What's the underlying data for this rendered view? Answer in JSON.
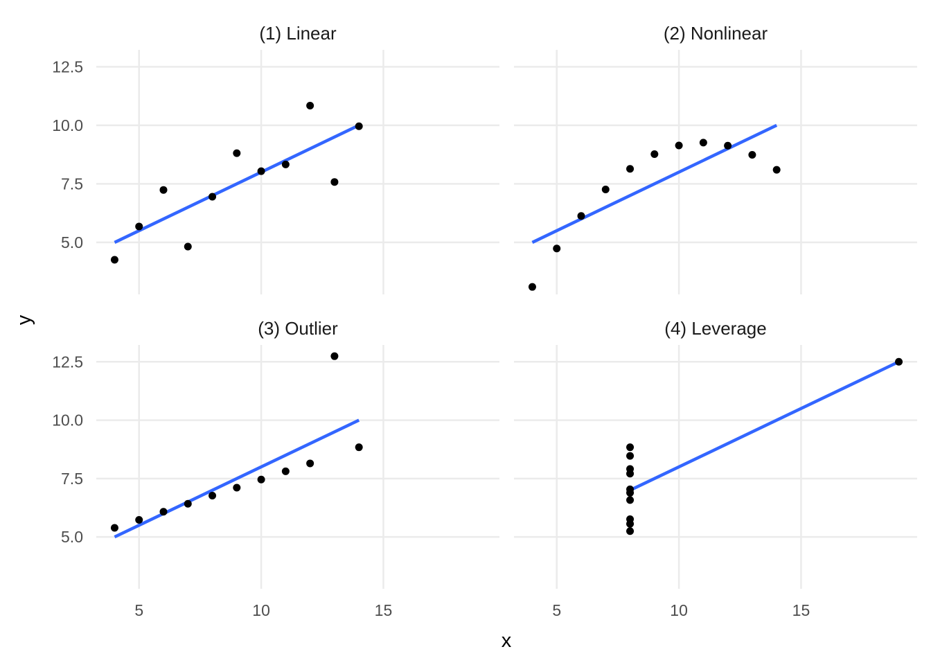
{
  "chart_data": {
    "type": "scatter",
    "xlabel": "x",
    "ylabel": "y",
    "xlim": [
      3.25,
      19.75
    ],
    "ylim": [
      2.78,
      13.22
    ],
    "x_ticks": [
      5,
      10,
      15
    ],
    "y_ticks": [
      5.0,
      7.5,
      10.0,
      12.5
    ],
    "x_tick_labels": [
      "5",
      "10",
      "15"
    ],
    "y_tick_labels": [
      "5.0",
      "7.5",
      "10.0",
      "12.5"
    ],
    "grid": true,
    "point_color": "#000000",
    "line_color": "#3366ff",
    "panels": [
      {
        "title": "(1) Linear",
        "points": {
          "x": [
            10,
            8,
            13,
            9,
            11,
            14,
            6,
            4,
            12,
            7,
            5
          ],
          "y": [
            8.04,
            6.95,
            7.58,
            8.81,
            8.33,
            9.96,
            7.24,
            4.26,
            10.84,
            4.82,
            5.68
          ]
        },
        "fit": {
          "x": [
            4,
            14
          ],
          "y": [
            5.0,
            10.0
          ]
        }
      },
      {
        "title": "(2) Nonlinear",
        "points": {
          "x": [
            10,
            8,
            13,
            9,
            11,
            14,
            6,
            4,
            12,
            7,
            5
          ],
          "y": [
            9.14,
            8.14,
            8.74,
            8.77,
            9.26,
            8.1,
            6.13,
            3.1,
            9.13,
            7.26,
            4.74
          ]
        },
        "fit": {
          "x": [
            4,
            14
          ],
          "y": [
            5.0,
            10.0
          ]
        }
      },
      {
        "title": "(3) Outlier",
        "points": {
          "x": [
            10,
            8,
            13,
            9,
            11,
            14,
            6,
            4,
            12,
            7,
            5
          ],
          "y": [
            7.46,
            6.77,
            12.74,
            7.11,
            7.81,
            8.84,
            6.08,
            5.39,
            8.15,
            6.42,
            5.73
          ]
        },
        "fit": {
          "x": [
            4,
            14
          ],
          "y": [
            5.0,
            10.0
          ]
        }
      },
      {
        "title": "(4) Leverage",
        "points": {
          "x": [
            8,
            8,
            8,
            8,
            8,
            8,
            8,
            19,
            8,
            8,
            8
          ],
          "y": [
            6.58,
            5.76,
            7.71,
            8.84,
            8.47,
            7.04,
            5.25,
            12.5,
            5.56,
            7.91,
            6.89
          ]
        },
        "fit": {
          "x": [
            8,
            19
          ],
          "y": [
            7.0,
            12.5
          ]
        }
      }
    ]
  }
}
